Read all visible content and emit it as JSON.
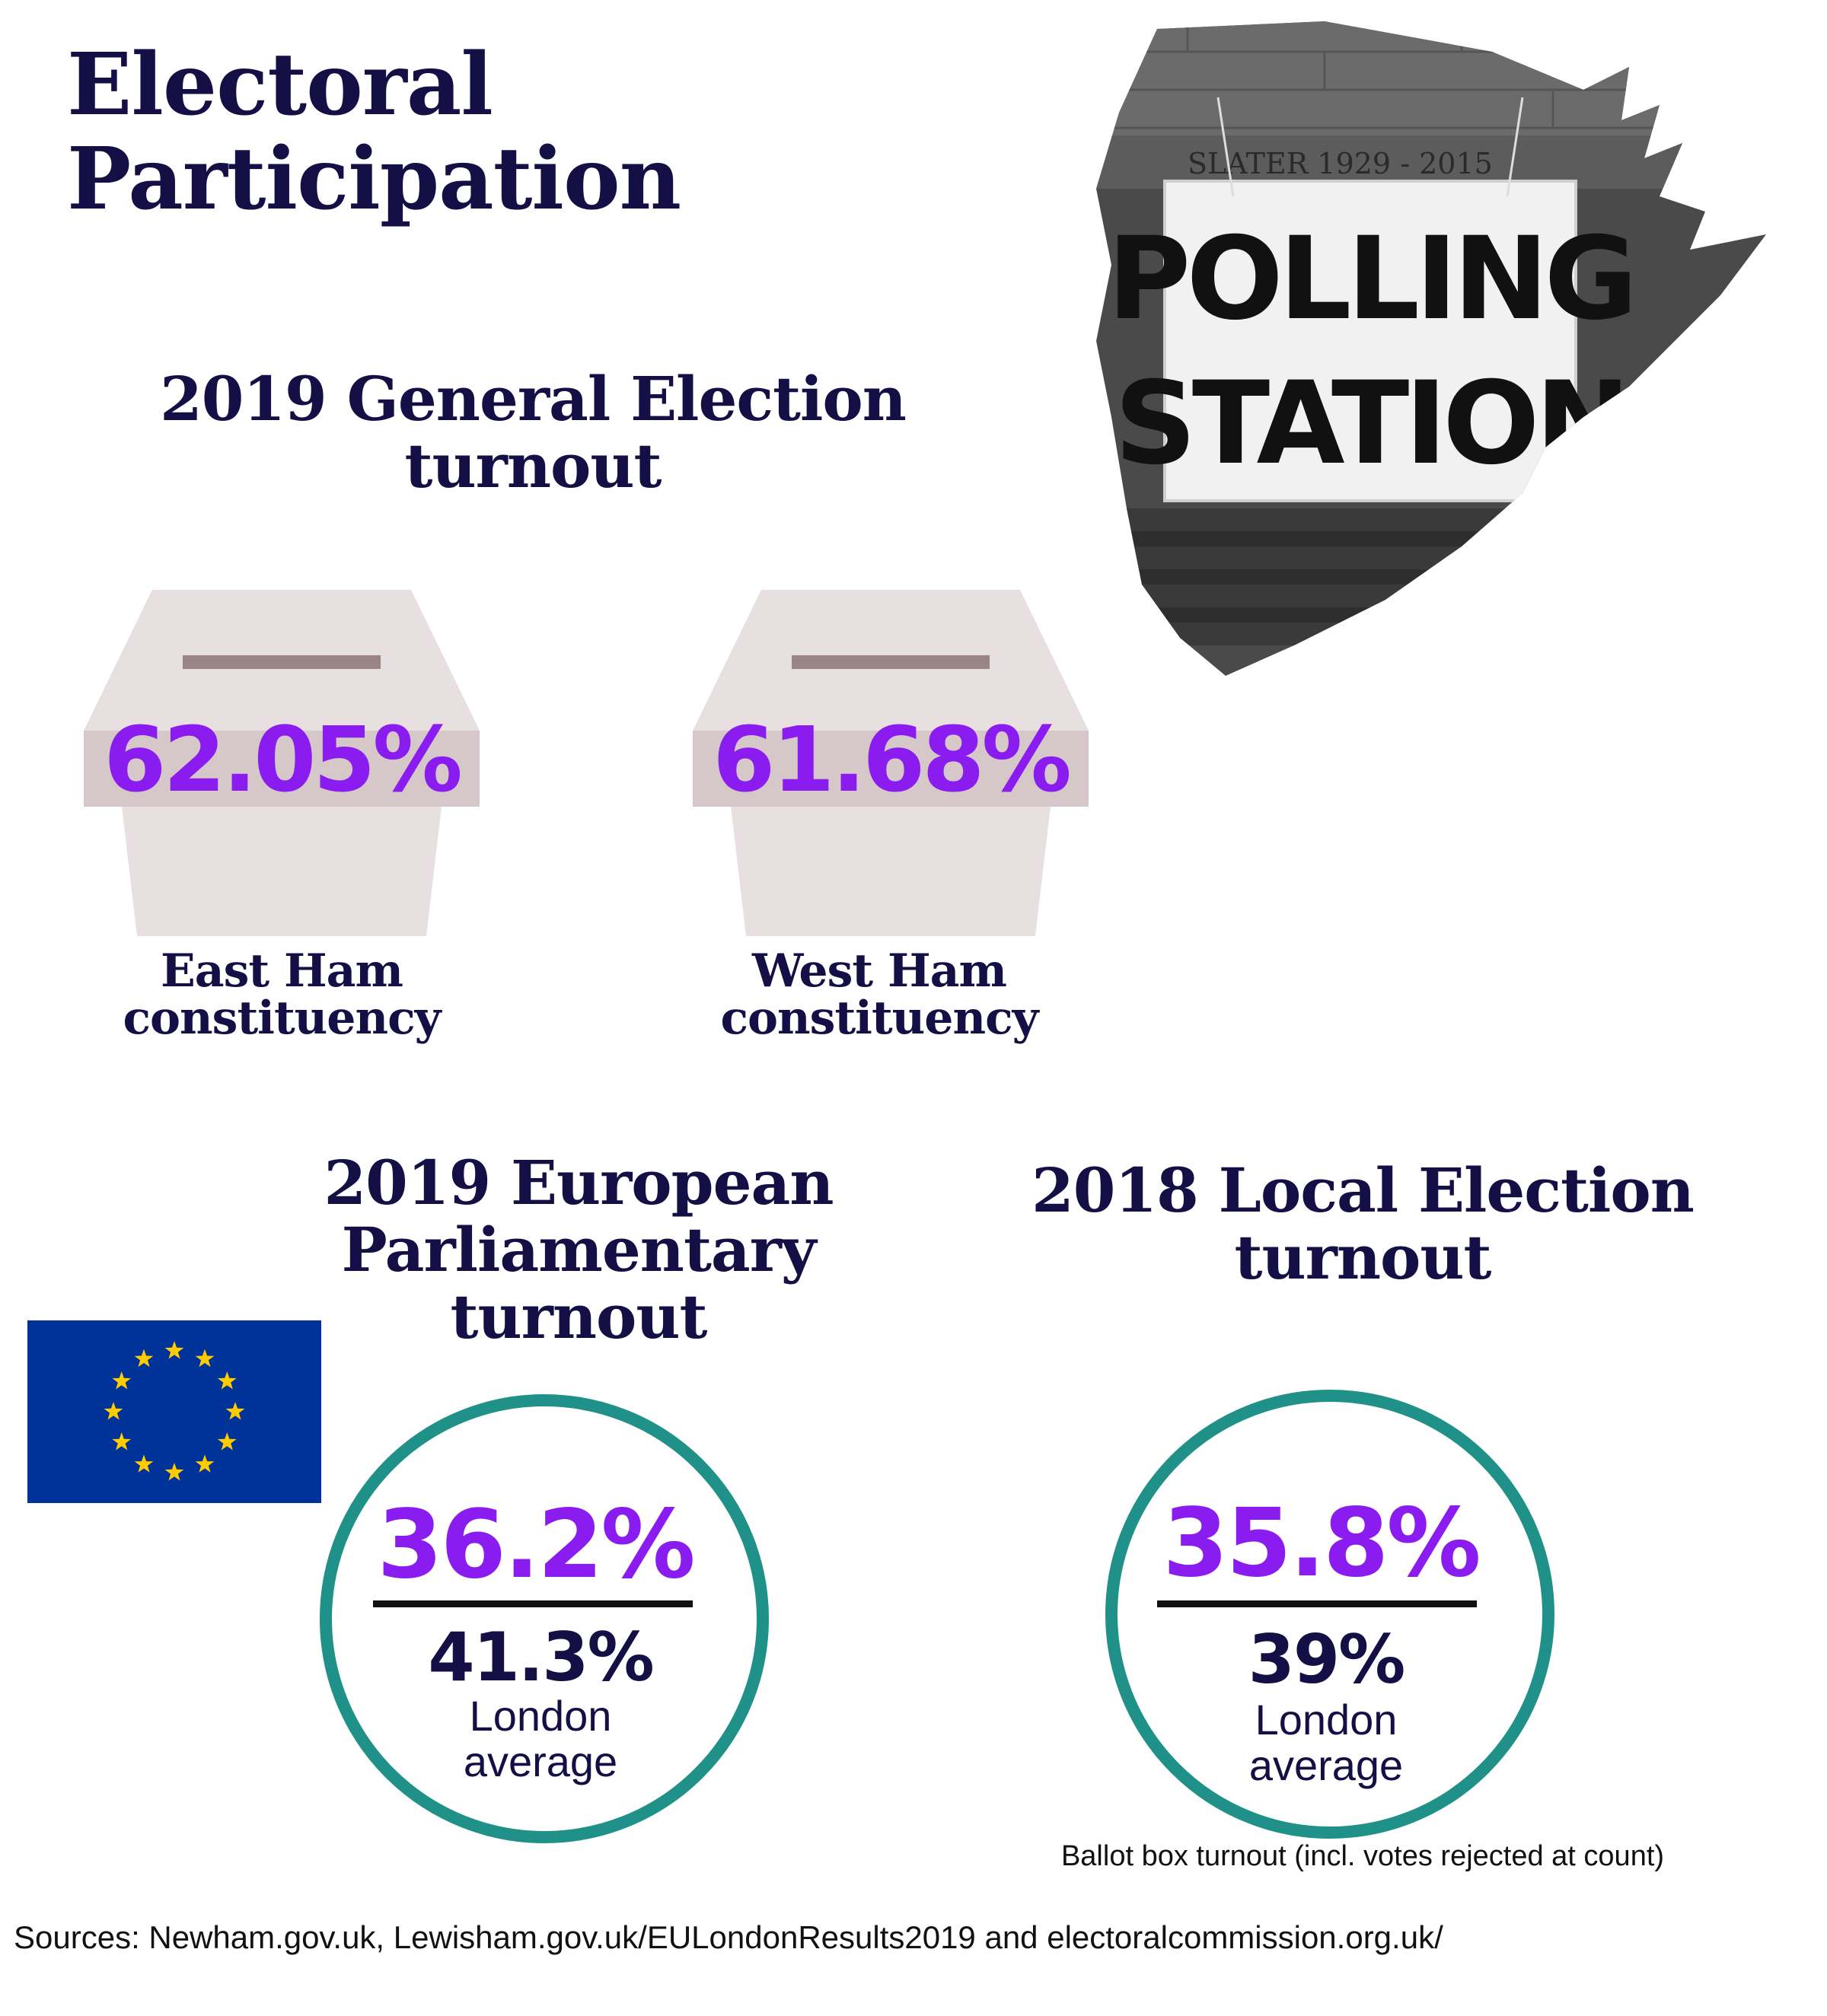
{
  "title": {
    "line1": "Electoral",
    "line2": "Participation"
  },
  "photo": {
    "sign_line1": "POLLING",
    "sign_line2": "STATION",
    "plaque": "SLATER 1929 - 2015"
  },
  "general_election": {
    "heading_line1": "2019 General Election",
    "heading_line2": "turnout",
    "east": {
      "value": "62.05%",
      "label_line1": "East Ham",
      "label_line2": "constituency"
    },
    "west": {
      "value": "61.68%",
      "label_line1": "West Ham",
      "label_line2": "constituency"
    }
  },
  "european": {
    "heading_line1": "2019 European",
    "heading_line2": "Parliamentary",
    "heading_line3": "turnout",
    "value": "36.2%",
    "london_value": "41.3%",
    "london_label_line1": "London",
    "london_label_line2": "average"
  },
  "local": {
    "heading_line1": "2018 Local Election",
    "heading_line2": "turnout",
    "value": "35.8%",
    "london_value": "39%",
    "london_label_line1": "London",
    "london_label_line2": "average"
  },
  "note": "Ballot box turnout (incl. votes rejected at count)",
  "sources": "Sources: Newham.gov.uk, Lewisham.gov.uk/EULondonResults2019 and electoralcommission.org.uk/",
  "colors": {
    "navy": "#140f45",
    "purple": "#8a1cf0",
    "teal": "#1f9188",
    "ballot_box": "#e8e0e0",
    "ballot_band": "#d6c8c8",
    "eu_blue": "#003399",
    "eu_star": "#ffcc00"
  },
  "icons": [
    "ballot-box-icon",
    "eu-flag-icon",
    "polling-station-photo"
  ]
}
